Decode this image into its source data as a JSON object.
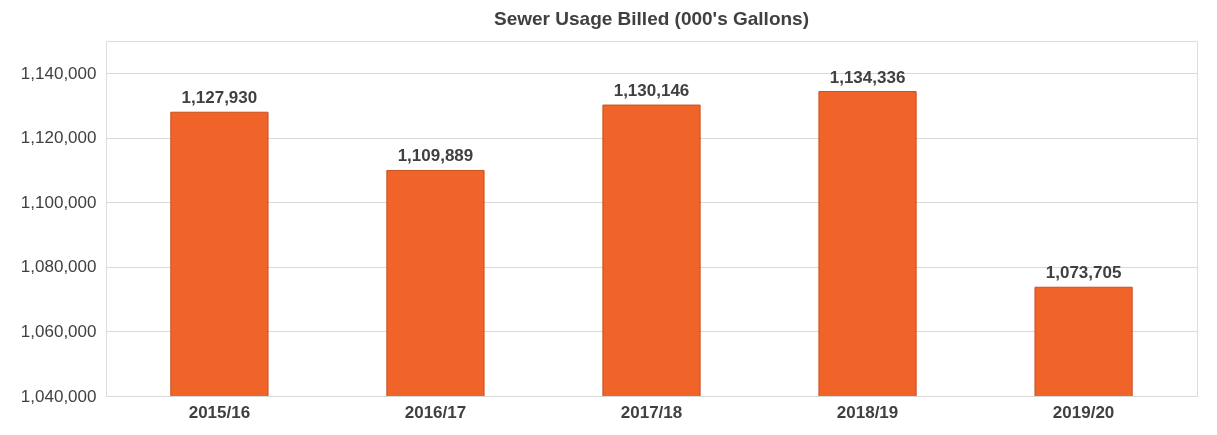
{
  "chart_data": {
    "type": "bar",
    "title": "Sewer Usage Billed (000's Gallons)",
    "categories": [
      "2015/16",
      "2016/17",
      "2017/18",
      "2018/19",
      "2019/20"
    ],
    "values": [
      1127930,
      1109889,
      1130146,
      1134336,
      1073705
    ],
    "value_labels": [
      "1,127,930",
      "1,109,889",
      "1,130,146",
      "1,134,336",
      "1,073,705"
    ],
    "color": "#f0642a",
    "ylim": [
      1040000,
      1150000
    ],
    "yticks": [
      {
        "value": 1040000,
        "label": "1,040,000"
      },
      {
        "value": 1060000,
        "label": "1,060,000"
      },
      {
        "value": 1080000,
        "label": "1,080,000"
      },
      {
        "value": 1100000,
        "label": "1,100,000"
      },
      {
        "value": 1120000,
        "label": "1,120,000"
      },
      {
        "value": 1140000,
        "label": "1,140,000"
      }
    ],
    "grid": "y"
  }
}
